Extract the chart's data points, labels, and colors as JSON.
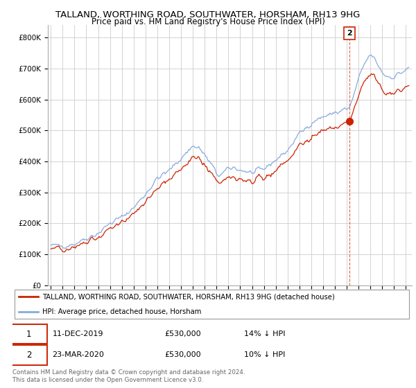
{
  "title": "TALLAND, WORTHING ROAD, SOUTHWATER, HORSHAM, RH13 9HG",
  "subtitle": "Price paid vs. HM Land Registry's House Price Index (HPI)",
  "hpi_color": "#88aadd",
  "price_color": "#cc2200",
  "background_color": "#ffffff",
  "grid_color": "#cccccc",
  "legend_label_red": "TALLAND, WORTHING ROAD, SOUTHWATER, HORSHAM, RH13 9HG (detached house)",
  "legend_label_blue": "HPI: Average price, detached house, Horsham",
  "sale1_date": "11-DEC-2019",
  "sale1_price": "£530,000",
  "sale1_hpi": "14% ↓ HPI",
  "sale2_date": "23-MAR-2020",
  "sale2_price": "£530,000",
  "sale2_hpi": "10% ↓ HPI",
  "ylabel_ticks": [
    "£0",
    "£100K",
    "£200K",
    "£300K",
    "£400K",
    "£500K",
    "£600K",
    "£700K",
    "£800K"
  ],
  "ytick_values": [
    0,
    100000,
    200000,
    300000,
    400000,
    500000,
    600000,
    700000,
    800000
  ],
  "ylim": [
    0,
    840000
  ],
  "footnote": "Contains HM Land Registry data © Crown copyright and database right 2024.\nThis data is licensed under the Open Government Licence v3.0.",
  "sale_year1": 2019.94,
  "sale_year2": 2020.23,
  "sale_price1": 530000,
  "sale_price2": 530000,
  "xtick_years": [
    1995,
    1996,
    1997,
    1998,
    1999,
    2000,
    2001,
    2002,
    2003,
    2004,
    2005,
    2006,
    2007,
    2008,
    2009,
    2010,
    2011,
    2012,
    2013,
    2014,
    2015,
    2016,
    2017,
    2018,
    2019,
    2020,
    2021,
    2022,
    2023,
    2024,
    2025
  ]
}
